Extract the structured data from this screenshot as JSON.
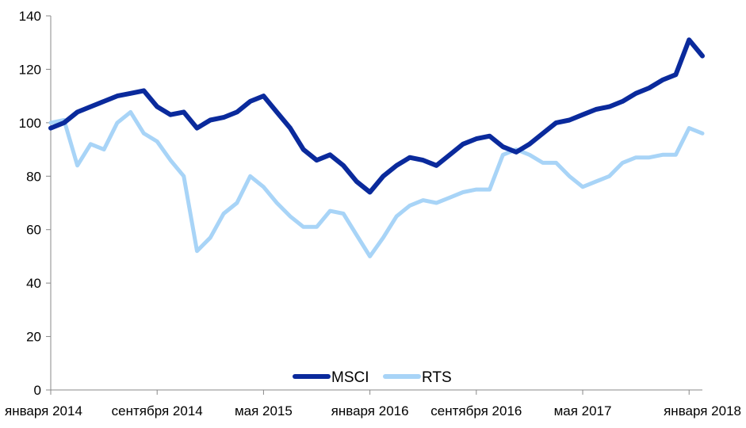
{
  "chart_data": {
    "type": "line",
    "title": "",
    "xlabel": "",
    "ylabel": "",
    "ylim": [
      0,
      140
    ],
    "y_ticks": [
      0,
      20,
      40,
      60,
      80,
      100,
      120,
      140
    ],
    "y_tick_labels": [
      "0",
      "20",
      "40",
      "60",
      "80",
      "100",
      "120",
      "140"
    ],
    "x_tick_labels": [
      "января 2014",
      "сентября 2014",
      "мая 2015",
      "января 2016",
      "сентября 2016",
      "мая 2017",
      "января 2018"
    ],
    "x_tick_dates": [
      "2014-01",
      "2014-09",
      "2015-05",
      "2016-01",
      "2016-09",
      "2017-05",
      "2018-01"
    ],
    "x_range": [
      "2014-01",
      "2018-02"
    ],
    "grid": false,
    "legend_position": "bottom-center",
    "series": [
      {
        "name": "MSCI",
        "color": "#0a2a9c",
        "dates": [
          "2014-01",
          "2014-02",
          "2014-03",
          "2014-04",
          "2014-05",
          "2014-06",
          "2014-07",
          "2014-08",
          "2014-09",
          "2014-10",
          "2014-11",
          "2014-12",
          "2015-01",
          "2015-02",
          "2015-03",
          "2015-04",
          "2015-05",
          "2015-06",
          "2015-07",
          "2015-08",
          "2015-09",
          "2015-10",
          "2015-11",
          "2015-12",
          "2016-01",
          "2016-02",
          "2016-03",
          "2016-04",
          "2016-05",
          "2016-06",
          "2016-07",
          "2016-08",
          "2016-09",
          "2016-10",
          "2016-11",
          "2016-12",
          "2017-01",
          "2017-02",
          "2017-03",
          "2017-04",
          "2017-05",
          "2017-06",
          "2017-07",
          "2017-08",
          "2017-09",
          "2017-10",
          "2017-11",
          "2017-12",
          "2018-01",
          "2018-02"
        ],
        "values": [
          98,
          100,
          104,
          106,
          108,
          110,
          111,
          112,
          106,
          103,
          104,
          98,
          101,
          102,
          104,
          108,
          110,
          104,
          98,
          90,
          86,
          88,
          84,
          78,
          74,
          80,
          84,
          87,
          86,
          84,
          88,
          92,
          94,
          95,
          91,
          89,
          92,
          96,
          100,
          101,
          103,
          105,
          106,
          108,
          111,
          113,
          116,
          118,
          131,
          125
        ]
      },
      {
        "name": "RTS",
        "color": "#a8d4f7",
        "dates": [
          "2014-01",
          "2014-02",
          "2014-03",
          "2014-04",
          "2014-05",
          "2014-06",
          "2014-07",
          "2014-08",
          "2014-09",
          "2014-10",
          "2014-11",
          "2014-12",
          "2015-01",
          "2015-02",
          "2015-03",
          "2015-04",
          "2015-05",
          "2015-06",
          "2015-07",
          "2015-08",
          "2015-09",
          "2015-10",
          "2015-11",
          "2015-12",
          "2016-01",
          "2016-02",
          "2016-03",
          "2016-04",
          "2016-05",
          "2016-06",
          "2016-07",
          "2016-08",
          "2016-09",
          "2016-10",
          "2016-11",
          "2016-12",
          "2017-01",
          "2017-02",
          "2017-03",
          "2017-04",
          "2017-05",
          "2017-06",
          "2017-07",
          "2017-08",
          "2017-09",
          "2017-10",
          "2017-11",
          "2017-12",
          "2018-01",
          "2018-02"
        ],
        "values": [
          100,
          101,
          84,
          92,
          90,
          100,
          104,
          96,
          93,
          86,
          80,
          52,
          57,
          66,
          70,
          80,
          76,
          70,
          65,
          61,
          61,
          67,
          66,
          58,
          50,
          57,
          65,
          69,
          71,
          70,
          72,
          74,
          75,
          75,
          88,
          90,
          88,
          85,
          85,
          80,
          76,
          78,
          80,
          85,
          87,
          87,
          88,
          88,
          98,
          96
        ]
      }
    ]
  }
}
